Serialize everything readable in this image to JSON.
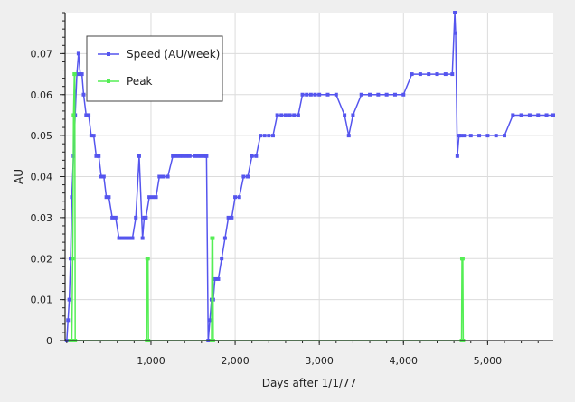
{
  "chart_data": {
    "type": "line",
    "title": "",
    "xlabel": "Days after 1/1/77",
    "ylabel": "AU",
    "xlim": [
      -20,
      5780
    ],
    "ylim": [
      0,
      0.08
    ],
    "x_ticks": [
      1000,
      2000,
      3000,
      4000,
      5000
    ],
    "x_tick_labels": [
      "1,000",
      "2,000",
      "3,000",
      "4,000",
      "5,000"
    ],
    "y_ticks": [
      0,
      0.01,
      0.02,
      0.03,
      0.04,
      0.05,
      0.06,
      0.07
    ],
    "y_tick_labels": [
      "0",
      "0.01",
      "0.02",
      "0.03",
      "0.04",
      "0.05",
      "0.06",
      "0.07"
    ],
    "grid": true,
    "legend_position": "top-left",
    "series": [
      {
        "name": "Speed (AU/week)",
        "color": "#5555ee",
        "x": [
          0,
          15,
          30,
          45,
          60,
          80,
          100,
          120,
          140,
          160,
          180,
          200,
          230,
          260,
          290,
          320,
          350,
          380,
          410,
          440,
          470,
          500,
          540,
          580,
          620,
          660,
          700,
          740,
          780,
          820,
          860,
          900,
          920,
          940,
          980,
          1020,
          1060,
          1100,
          1140,
          1200,
          1260,
          1300,
          1340,
          1380,
          1420,
          1460,
          1520,
          1560,
          1600,
          1640,
          1660,
          1680,
          1700,
          1720,
          1740,
          1760,
          1800,
          1840,
          1880,
          1920,
          1960,
          2000,
          2050,
          2100,
          2150,
          2200,
          2250,
          2300,
          2350,
          2400,
          2450,
          2500,
          2550,
          2600,
          2650,
          2700,
          2750,
          2800,
          2850,
          2900,
          2950,
          3000,
          3100,
          3200,
          3300,
          3350,
          3400,
          3500,
          3600,
          3700,
          3800,
          3900,
          4000,
          4100,
          4200,
          4300,
          4400,
          4500,
          4580,
          4610,
          4620,
          4640,
          4660,
          4680,
          4720,
          4800,
          4900,
          5000,
          5100,
          5200,
          5300,
          5400,
          5500,
          5600,
          5700,
          5780
        ],
        "y": [
          0,
          0.005,
          0.01,
          0.02,
          0.035,
          0.045,
          0.055,
          0.065,
          0.07,
          0.065,
          0.065,
          0.06,
          0.055,
          0.055,
          0.05,
          0.05,
          0.045,
          0.045,
          0.04,
          0.04,
          0.035,
          0.035,
          0.03,
          0.03,
          0.025,
          0.025,
          0.025,
          0.025,
          0.025,
          0.03,
          0.045,
          0.025,
          0.03,
          0.03,
          0.035,
          0.035,
          0.035,
          0.04,
          0.04,
          0.04,
          0.045,
          0.045,
          0.045,
          0.045,
          0.045,
          0.045,
          0.045,
          0.045,
          0.045,
          0.045,
          0.045,
          0.0,
          0.005,
          0.01,
          0.01,
          0.015,
          0.015,
          0.02,
          0.025,
          0.03,
          0.03,
          0.035,
          0.035,
          0.04,
          0.04,
          0.045,
          0.045,
          0.05,
          0.05,
          0.05,
          0.05,
          0.055,
          0.055,
          0.055,
          0.055,
          0.055,
          0.055,
          0.06,
          0.06,
          0.06,
          0.06,
          0.06,
          0.06,
          0.06,
          0.055,
          0.05,
          0.055,
          0.06,
          0.06,
          0.06,
          0.06,
          0.06,
          0.06,
          0.065,
          0.065,
          0.065,
          0.065,
          0.065,
          0.065,
          0.08,
          0.075,
          0.045,
          0.05,
          0.05,
          0.05,
          0.05,
          0.05,
          0.05,
          0.05,
          0.05,
          0.055,
          0.055,
          0.055,
          0.055,
          0.055,
          0.055
        ]
      },
      {
        "name": "Peak",
        "color": "#55ee55",
        "x": [
          40,
          60,
          70,
          80,
          90,
          95,
          100,
          950,
          955,
          960,
          965,
          970,
          1720,
          1725,
          1730,
          1735,
          1740,
          4690,
          4695,
          4700,
          4705,
          4710
        ],
        "y": [
          0,
          0,
          0.02,
          0.055,
          0.065,
          0.065,
          0,
          0,
          0.02,
          0.02,
          0.02,
          0,
          0,
          0.025,
          0.025,
          0.025,
          0,
          0,
          0.02,
          0.02,
          0.02,
          0
        ]
      }
    ]
  }
}
